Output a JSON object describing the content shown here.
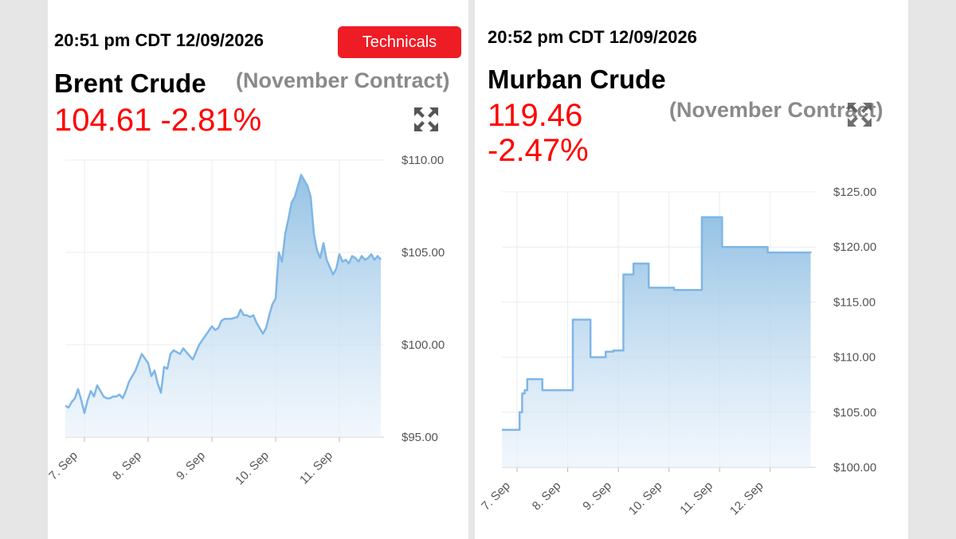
{
  "brent": {
    "timestamp": "20:51 pm CDT 12/09/2026",
    "technicals_label": "Technicals",
    "name": "Brent Crude",
    "contract": "(November Contract)",
    "price": "104.61",
    "change": "-2.81%",
    "icon": "expand-icon"
  },
  "murban": {
    "timestamp": "20:52 pm CDT 12/09/2026",
    "name": "Murban Crude",
    "contract": "(November Contract)",
    "price": "119.46",
    "change": "-2.47%",
    "icon": "expand-icon"
  },
  "colors": {
    "price": "#ff0000",
    "line": "#7fb6e6",
    "button": "#ee1c25",
    "contract": "#8a8a8a"
  },
  "chart_data": [
    {
      "type": "area",
      "ylim": [
        95,
        110
      ],
      "xlim": [
        6.7,
        11.7
      ],
      "y_ticks": [
        "$110.00",
        "$105.00",
        "$100.00",
        "$95.00"
      ],
      "y_tick_values": [
        110,
        105,
        100,
        95
      ],
      "x_ticks": [
        "7. Sep",
        "8. Sep",
        "9. Sep",
        "10. Sep",
        "11. Sep"
      ],
      "x_tick_values": [
        7,
        8,
        9,
        10,
        11
      ],
      "grid": true,
      "series": [
        {
          "x": [
            6.7,
            6.75,
            6.8,
            6.85,
            6.9,
            6.95,
            7.0,
            7.05,
            7.1,
            7.15,
            7.2,
            7.25,
            7.3,
            7.35,
            7.4,
            7.45,
            7.5,
            7.55,
            7.6,
            7.65,
            7.7,
            7.8,
            7.9,
            8.0,
            8.05,
            8.1,
            8.15,
            8.2,
            8.25,
            8.3,
            8.35,
            8.4,
            8.45,
            8.5,
            8.55,
            8.6,
            8.65,
            8.7,
            8.8,
            8.9,
            9.0,
            9.05,
            9.1,
            9.15,
            9.2,
            9.3,
            9.4,
            9.45,
            9.5,
            9.55,
            9.6,
            9.65,
            9.7,
            9.75,
            9.8,
            9.85,
            9.9,
            9.95,
            10.0,
            10.05,
            10.1,
            10.15,
            10.2,
            10.25,
            10.3,
            10.35,
            10.4,
            10.45,
            10.5,
            10.55,
            10.6,
            10.65,
            10.7,
            10.75,
            10.8,
            10.85,
            10.9,
            10.95,
            11.0,
            11.05,
            11.1,
            11.15,
            11.2,
            11.25,
            11.3,
            11.35,
            11.4,
            11.45,
            11.5,
            11.55,
            11.6,
            11.65
          ],
          "y": [
            96.7,
            96.6,
            96.9,
            97.1,
            97.6,
            97.0,
            96.3,
            97.0,
            97.5,
            97.2,
            97.8,
            97.5,
            97.2,
            97.1,
            97.1,
            97.2,
            97.2,
            97.3,
            97.1,
            97.5,
            98.0,
            98.6,
            99.5,
            99.0,
            98.3,
            98.6,
            97.9,
            97.4,
            98.8,
            98.7,
            99.5,
            99.7,
            99.6,
            99.5,
            99.8,
            99.6,
            99.4,
            99.2,
            100.0,
            100.5,
            101.0,
            100.8,
            100.9,
            101.3,
            101.4,
            101.4,
            101.5,
            101.9,
            101.6,
            101.6,
            101.5,
            101.6,
            101.2,
            100.9,
            100.6,
            100.9,
            101.6,
            102.2,
            102.5,
            105.0,
            104.5,
            106.0,
            106.8,
            107.7,
            108.0,
            108.6,
            109.2,
            108.9,
            108.6,
            108.0,
            106.0,
            105.1,
            104.7,
            105.5,
            104.6,
            104.2,
            103.8,
            104.1,
            104.9,
            104.5,
            104.6,
            104.4,
            104.8,
            104.7,
            104.5,
            104.8,
            104.6,
            104.7,
            104.9,
            104.6,
            104.8,
            104.61
          ]
        }
      ]
    },
    {
      "type": "area",
      "ylim": [
        100,
        125
      ],
      "xlim": [
        6.7,
        12.9
      ],
      "y_ticks": [
        "$125.00",
        "$120.00",
        "$115.00",
        "$110.00",
        "$105.00",
        "$100.00"
      ],
      "y_tick_values": [
        125,
        120,
        115,
        110,
        105,
        100
      ],
      "x_ticks": [
        "7. Sep",
        "8. Sep",
        "9. Sep",
        "10. Sep",
        "11. Sep",
        "12. Sep"
      ],
      "x_tick_values": [
        7,
        8,
        9,
        10,
        11,
        12
      ],
      "grid": true,
      "series": [
        {
          "step": true,
          "x": [
            6.7,
            7.05,
            7.1,
            7.15,
            7.2,
            7.5,
            8.0,
            8.1,
            8.45,
            8.7,
            8.75,
            8.9,
            9.1,
            9.3,
            9.6,
            10.0,
            10.1,
            10.65,
            11.05,
            11.6,
            11.95,
            12.2,
            12.8
          ],
          "y": [
            103.4,
            105.0,
            106.7,
            107.0,
            108.0,
            107.0,
            107.0,
            113.4,
            110.0,
            110.0,
            110.5,
            110.6,
            117.5,
            118.5,
            116.3,
            116.3,
            116.1,
            122.7,
            120.0,
            120.0,
            119.5,
            119.5,
            119.46
          ]
        }
      ]
    }
  ]
}
